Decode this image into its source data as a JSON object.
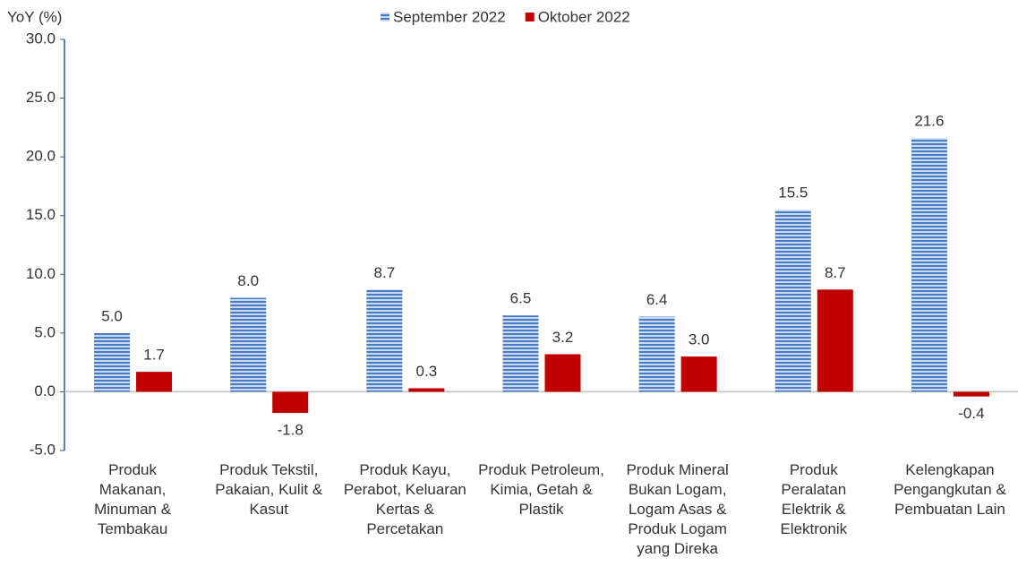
{
  "chart_data": {
    "type": "bar",
    "y_axis_label": "YoY (%)",
    "categories": [
      "Produk Makanan, Minuman & Tembakau",
      "Produk Tekstil, Pakaian, Kulit & Kasut",
      "Produk Kayu, Perabot, Keluaran Kertas & Percetakan",
      "Produk Petroleum, Kimia, Getah & Plastik",
      "Produk Mineral Bukan Logam, Logam Asas & Produk Logam yang Direka",
      "Produk Peralatan Elektrik & Elektronik",
      "Kelengkapan Pengangkutan & Pembuatan Lain"
    ],
    "series": [
      {
        "name": "September 2022",
        "color": "#4a7cc4",
        "values": [
          5.0,
          8.0,
          8.7,
          6.5,
          6.4,
          15.5,
          21.6
        ],
        "value_labels": [
          "5.0",
          "8.0",
          "8.7",
          "6.5",
          "6.4",
          "15.5",
          "21.6"
        ]
      },
      {
        "name": "Oktober 2022",
        "color": "#c00000",
        "values": [
          1.7,
          -1.8,
          0.3,
          3.2,
          3.0,
          8.7,
          -0.4
        ],
        "value_labels": [
          "1.7",
          "-1.8",
          "0.3",
          "3.2",
          "3.0",
          "8.7",
          "-0.4"
        ]
      }
    ],
    "ylim": [
      -5,
      30
    ],
    "yticks": [
      {
        "value": -5,
        "label": "-5.0"
      },
      {
        "value": 0,
        "label": "0.0"
      },
      {
        "value": 5,
        "label": "5.0"
      },
      {
        "value": 10,
        "label": "10.0"
      },
      {
        "value": 15,
        "label": "15.0"
      },
      {
        "value": 20,
        "label": "20.0"
      },
      {
        "value": 25,
        "label": "25.0"
      },
      {
        "value": 30,
        "label": "30.0"
      }
    ],
    "legend": "top"
  }
}
